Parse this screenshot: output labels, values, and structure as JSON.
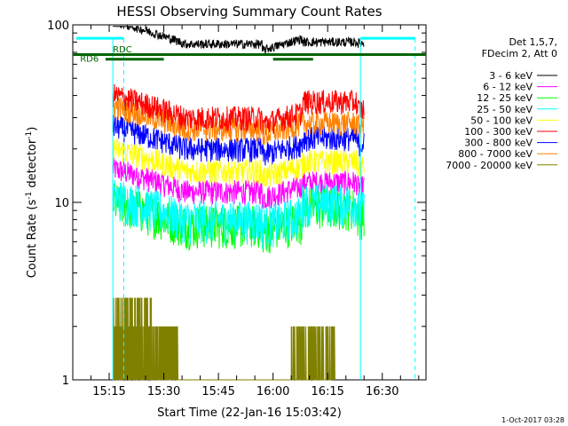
{
  "chart_data": {
    "type": "line",
    "title": "HESSI Observing Summary Count Rates",
    "xlabel": "Start Time (22-Jan-16 15:03:42)",
    "ylabel": "Count Rate (s⁻¹ detector⁻¹)",
    "ylabel_main": "Count Rate (s",
    "ylabel_sup1": "-1",
    "ylabel_mid": " detector",
    "ylabel_sup2": "-1",
    "ylabel_end": ")",
    "y_scale": "log",
    "ylim": [
      1,
      100
    ],
    "xlim": [
      "15:05",
      "16:42"
    ],
    "x_ticks": [
      "15:15",
      "15:30",
      "15:45",
      "16:00",
      "16:15",
      "16:30"
    ],
    "y_ticks": [
      "1",
      "10",
      "100"
    ],
    "grid": false,
    "legend_position": "right",
    "legend_header": [
      "Det 1,5,7,",
      "FDecim 2, Att 0"
    ],
    "data_start": "15:16",
    "data_end": "16:25",
    "series": [
      {
        "name": "3 - 6 keV",
        "color": "#000000",
        "base": 78,
        "jump": 80
      },
      {
        "name": "6 - 12 keV",
        "color": "#ff00ff",
        "base": 11.5,
        "jump": 13
      },
      {
        "name": "12 - 25 keV",
        "color": "#00ff00",
        "base": 7.5,
        "jump": 9.5
      },
      {
        "name": "25 - 50 keV",
        "color": "#00ffff",
        "base": 8.0,
        "jump": 10
      },
      {
        "name": "50 - 100 keV",
        "color": "#ffff00",
        "base": 15,
        "jump": 17
      },
      {
        "name": "100 - 300 keV",
        "color": "#ff0000",
        "base": 30,
        "jump": 37
      },
      {
        "name": "300 - 800 keV",
        "color": "#0000ff",
        "base": 20,
        "jump": 23
      },
      {
        "name": "800 - 7000 keV",
        "color": "#ff8000",
        "base": 26,
        "jump": 28
      },
      {
        "name": "7000 - 20000 keV",
        "color": "#808000",
        "base": 1,
        "jump": 1
      }
    ],
    "annotations": [
      {
        "label": "RD6",
        "color": "#006400"
      },
      {
        "label": "RDC",
        "color": "#006400"
      }
    ],
    "footer_timestamp": "1-Oct-2017 03:28"
  }
}
